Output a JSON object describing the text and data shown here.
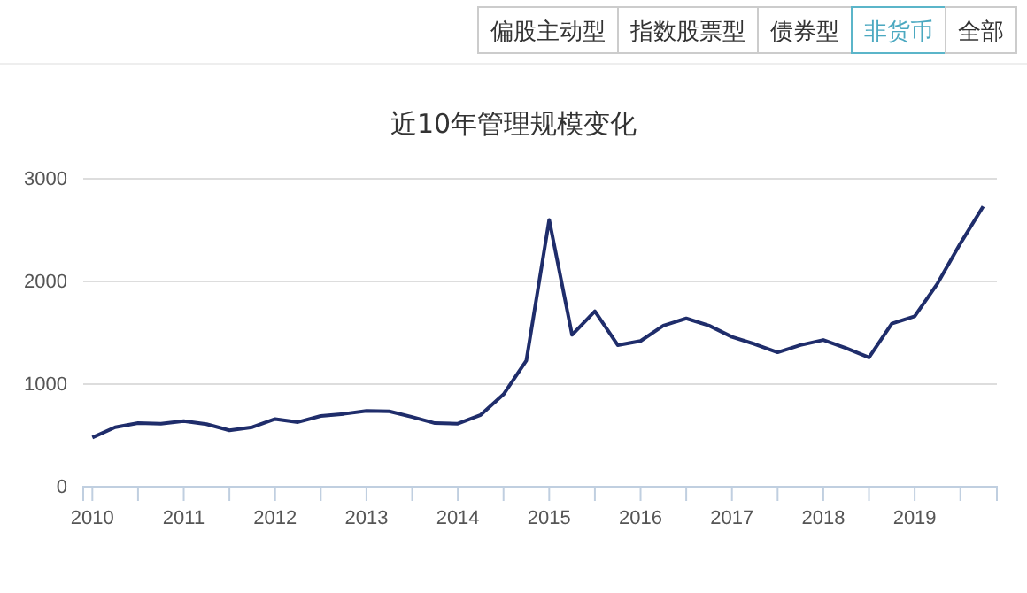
{
  "chart_data": {
    "type": "line",
    "title": "近10年管理规模变化",
    "annotations": [
      "偏股主动型",
      "指数股票型",
      "债券型",
      "非货币",
      "全部"
    ],
    "x": [
      2010,
      2010.25,
      2010.5,
      2010.75,
      2011,
      2011.25,
      2011.5,
      2011.75,
      2012,
      2012.25,
      2012.5,
      2012.75,
      2013,
      2013.25,
      2013.5,
      2013.75,
      2014,
      2014.25,
      2014.5,
      2014.75,
      2015,
      2015.25,
      2015.5,
      2015.75,
      2016,
      2016.25,
      2016.5,
      2016.75,
      2017,
      2017.25,
      2017.5,
      2017.75,
      2018,
      2018.25,
      2018.5,
      2018.75,
      2019,
      2019.25,
      2019.5,
      2019.75
    ],
    "series": [
      {
        "color": "#1f2d6b",
        "values": [
          480,
          580,
          620,
          615,
          640,
          610,
          550,
          580,
          660,
          630,
          690,
          710,
          740,
          735,
          680,
          620,
          615,
          700,
          900,
          1230,
          2600,
          1480,
          1710,
          1380,
          1420,
          1570,
          1640,
          1570,
          1460,
          1390,
          1310,
          1380,
          1430,
          1350,
          1260,
          1590,
          1660,
          1980,
          2370,
          2730
        ]
      }
    ],
    "xlim": [
      2009.9,
      2019.9
    ],
    "xticks": [
      2010,
      {
        "value": 2010.5,
        "label": null
      },
      2011,
      {
        "value": 2011.5,
        "label": null
      },
      2012,
      {
        "value": 2012.5,
        "label": null
      },
      2013,
      {
        "value": 2013.5,
        "label": null
      },
      2014,
      {
        "value": 2014.5,
        "label": null
      },
      2015,
      {
        "value": 2015.5,
        "label": null
      },
      2016,
      {
        "value": 2016.5,
        "label": null
      },
      2017,
      {
        "value": 2017.5,
        "label": null
      },
      2018,
      {
        "value": 2018.5,
        "label": null
      },
      2019,
      {
        "value": 2019.5,
        "label": null
      }
    ],
    "ylim": [
      0,
      3000
    ],
    "yticks": [
      0,
      1000,
      2000,
      3000
    ],
    "grid": "y",
    "legend": false,
    "marker": "none",
    "line_style": "solid"
  }
}
